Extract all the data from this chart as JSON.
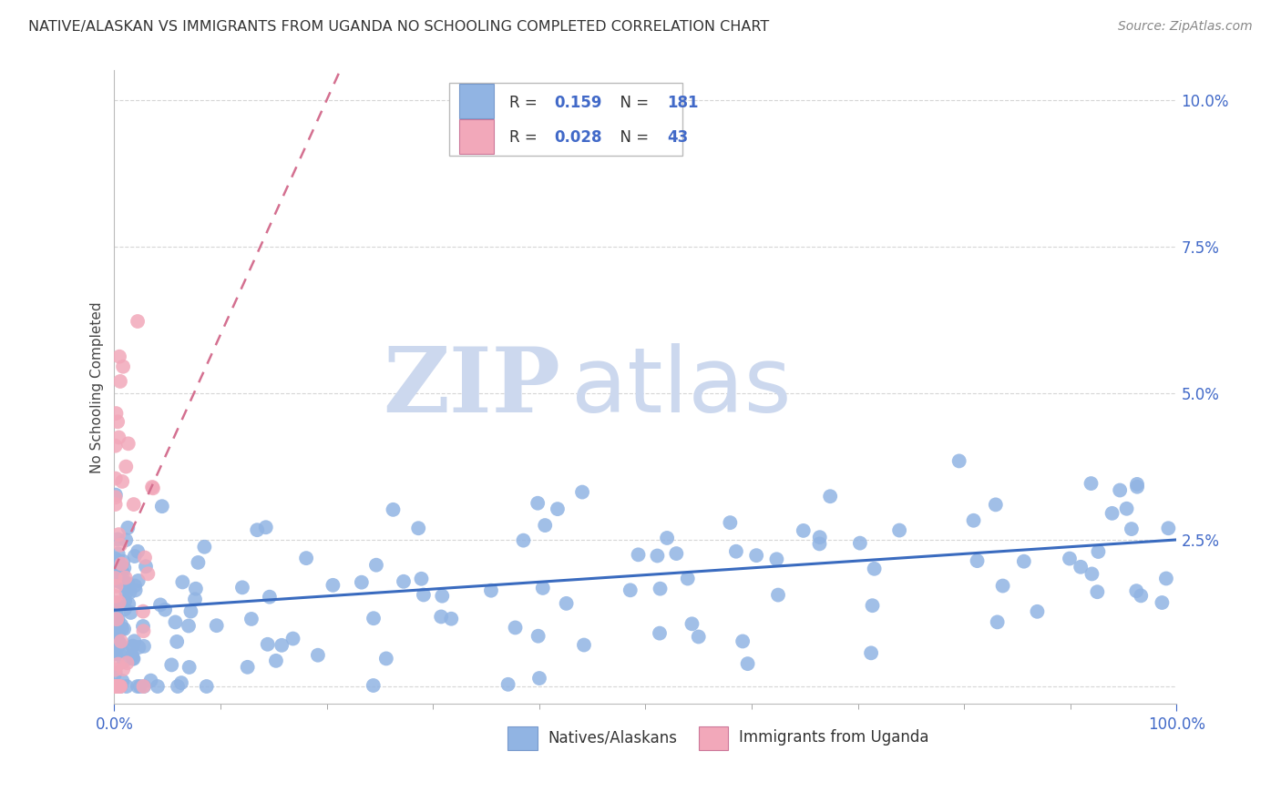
{
  "title": "NATIVE/ALASKAN VS IMMIGRANTS FROM UGANDA NO SCHOOLING COMPLETED CORRELATION CHART",
  "source": "Source: ZipAtlas.com",
  "ylabel": "No Schooling Completed",
  "ytick_labels": [
    "",
    "2.5%",
    "5.0%",
    "7.5%",
    "10.0%"
  ],
  "ytick_vals": [
    0.0,
    0.025,
    0.05,
    0.075,
    0.1
  ],
  "blue_color": "#91b4e3",
  "pink_color": "#f2a8ba",
  "trend_blue_color": "#3a6bbf",
  "trend_pink_color": "#d47090",
  "watermark_zip": "ZIP",
  "watermark_atlas": "atlas",
  "watermark_color": "#ccd8ee",
  "legend_r1": "0.159",
  "legend_n1": "181",
  "legend_r2": "0.028",
  "legend_n2": "43",
  "legend_label_color": "#4169c8",
  "legend_text_color": "#333333",
  "bottom_label1": "Natives/Alaskans",
  "bottom_label2": "Immigrants from Uganda",
  "xlim": [
    0,
    1
  ],
  "ylim": [
    -0.003,
    0.105
  ]
}
